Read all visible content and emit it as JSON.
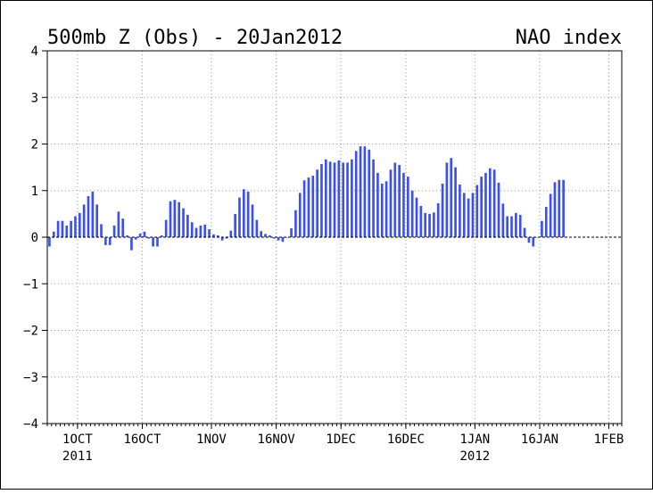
{
  "chart_data": {
    "type": "bar",
    "title": "500mb Z (Obs) - 20Jan2012",
    "subtitle": "NAO index",
    "xlabel": "",
    "ylabel": "",
    "ylim": [
      -4,
      4
    ],
    "yticks": [
      {
        "v": 4,
        "label": "4"
      },
      {
        "v": 3,
        "label": "3"
      },
      {
        "v": 2,
        "label": "2"
      },
      {
        "v": 1,
        "label": "1"
      },
      {
        "v": 0,
        "label": "0"
      },
      {
        "v": -1,
        "label": "−1"
      },
      {
        "v": -2,
        "label": "−2"
      },
      {
        "v": -3,
        "label": "−3"
      },
      {
        "v": -4,
        "label": "−4"
      }
    ],
    "x_start": "2011-09-24",
    "x_end": "2012-02-04",
    "xticks": [
      {
        "date": "2011-10-01",
        "label": "1OCT",
        "sublabel": "2011"
      },
      {
        "date": "2011-10-16",
        "label": "16OCT",
        "sublabel": ""
      },
      {
        "date": "2011-11-01",
        "label": "1NOV",
        "sublabel": ""
      },
      {
        "date": "2011-11-16",
        "label": "16NOV",
        "sublabel": ""
      },
      {
        "date": "2011-12-01",
        "label": "1DEC",
        "sublabel": ""
      },
      {
        "date": "2011-12-16",
        "label": "16DEC",
        "sublabel": ""
      },
      {
        "date": "2012-01-01",
        "label": "1JAN",
        "sublabel": "2012"
      },
      {
        "date": "2012-01-16",
        "label": "16JAN",
        "sublabel": ""
      },
      {
        "date": "2012-02-01",
        "label": "1FEB",
        "sublabel": ""
      }
    ],
    "grid": true,
    "bar_color": "#3c50f0",
    "series": [
      {
        "values": [
          {
            "x": "2011-09-24",
            "y": -0.2
          },
          {
            "x": "2011-09-25",
            "y": 0.12
          },
          {
            "x": "2011-09-26",
            "y": 0.35
          },
          {
            "x": "2011-09-27",
            "y": 0.35
          },
          {
            "x": "2011-09-28",
            "y": 0.25
          },
          {
            "x": "2011-09-29",
            "y": 0.35
          },
          {
            "x": "2011-09-30",
            "y": 0.45
          },
          {
            "x": "2011-10-01",
            "y": 0.52
          },
          {
            "x": "2011-10-02",
            "y": 0.7
          },
          {
            "x": "2011-10-03",
            "y": 0.88
          },
          {
            "x": "2011-10-04",
            "y": 0.98
          },
          {
            "x": "2011-10-05",
            "y": 0.7
          },
          {
            "x": "2011-10-06",
            "y": 0.28
          },
          {
            "x": "2011-10-07",
            "y": -0.17
          },
          {
            "x": "2011-10-08",
            "y": -0.17
          },
          {
            "x": "2011-10-09",
            "y": 0.25
          },
          {
            "x": "2011-10-10",
            "y": 0.55
          },
          {
            "x": "2011-10-11",
            "y": 0.4
          },
          {
            "x": "2011-10-12",
            "y": 0.04
          },
          {
            "x": "2011-10-13",
            "y": -0.28
          },
          {
            "x": "2011-10-14",
            "y": -0.05
          },
          {
            "x": "2011-10-15",
            "y": 0.08
          },
          {
            "x": "2011-10-16",
            "y": 0.12
          },
          {
            "x": "2011-10-17",
            "y": -0.03
          },
          {
            "x": "2011-10-18",
            "y": -0.2
          },
          {
            "x": "2011-10-19",
            "y": -0.2
          },
          {
            "x": "2011-10-20",
            "y": 0.04
          },
          {
            "x": "2011-10-21",
            "y": 0.37
          },
          {
            "x": "2011-10-22",
            "y": 0.77
          },
          {
            "x": "2011-10-23",
            "y": 0.8
          },
          {
            "x": "2011-10-24",
            "y": 0.75
          },
          {
            "x": "2011-10-25",
            "y": 0.62
          },
          {
            "x": "2011-10-26",
            "y": 0.48
          },
          {
            "x": "2011-10-27",
            "y": 0.32
          },
          {
            "x": "2011-10-28",
            "y": 0.2
          },
          {
            "x": "2011-10-29",
            "y": 0.25
          },
          {
            "x": "2011-10-30",
            "y": 0.27
          },
          {
            "x": "2011-10-31",
            "y": 0.17
          },
          {
            "x": "2011-11-01",
            "y": 0.06
          },
          {
            "x": "2011-11-02",
            "y": 0.04
          },
          {
            "x": "2011-11-03",
            "y": -0.07
          },
          {
            "x": "2011-11-04",
            "y": -0.03
          },
          {
            "x": "2011-11-05",
            "y": 0.14
          },
          {
            "x": "2011-11-06",
            "y": 0.5
          },
          {
            "x": "2011-11-07",
            "y": 0.85
          },
          {
            "x": "2011-11-08",
            "y": 1.03
          },
          {
            "x": "2011-11-09",
            "y": 0.98
          },
          {
            "x": "2011-11-10",
            "y": 0.7
          },
          {
            "x": "2011-11-11",
            "y": 0.37
          },
          {
            "x": "2011-11-12",
            "y": 0.13
          },
          {
            "x": "2011-11-13",
            "y": 0.07
          },
          {
            "x": "2011-11-14",
            "y": 0.04
          },
          {
            "x": "2011-11-15",
            "y": -0.03
          },
          {
            "x": "2011-11-16",
            "y": -0.07
          },
          {
            "x": "2011-11-17",
            "y": -0.1
          },
          {
            "x": "2011-11-18",
            "y": 0.0
          },
          {
            "x": "2011-11-19",
            "y": 0.19
          },
          {
            "x": "2011-11-20",
            "y": 0.58
          },
          {
            "x": "2011-11-21",
            "y": 0.95
          },
          {
            "x": "2011-11-22",
            "y": 1.22
          },
          {
            "x": "2011-11-23",
            "y": 1.28
          },
          {
            "x": "2011-11-24",
            "y": 1.32
          },
          {
            "x": "2011-11-25",
            "y": 1.45
          },
          {
            "x": "2011-11-26",
            "y": 1.57
          },
          {
            "x": "2011-11-27",
            "y": 1.67
          },
          {
            "x": "2011-11-28",
            "y": 1.62
          },
          {
            "x": "2011-11-29",
            "y": 1.6
          },
          {
            "x": "2011-11-30",
            "y": 1.65
          },
          {
            "x": "2011-12-01",
            "y": 1.6
          },
          {
            "x": "2011-12-02",
            "y": 1.6
          },
          {
            "x": "2011-12-03",
            "y": 1.67
          },
          {
            "x": "2011-12-04",
            "y": 1.85
          },
          {
            "x": "2011-12-05",
            "y": 1.95
          },
          {
            "x": "2011-12-06",
            "y": 1.95
          },
          {
            "x": "2011-12-07",
            "y": 1.88
          },
          {
            "x": "2011-12-08",
            "y": 1.67
          },
          {
            "x": "2011-12-09",
            "y": 1.38
          },
          {
            "x": "2011-12-10",
            "y": 1.15
          },
          {
            "x": "2011-12-11",
            "y": 1.2
          },
          {
            "x": "2011-12-12",
            "y": 1.45
          },
          {
            "x": "2011-12-13",
            "y": 1.6
          },
          {
            "x": "2011-12-14",
            "y": 1.55
          },
          {
            "x": "2011-12-15",
            "y": 1.38
          },
          {
            "x": "2011-12-16",
            "y": 1.3
          },
          {
            "x": "2011-12-17",
            "y": 1.0
          },
          {
            "x": "2011-12-18",
            "y": 0.85
          },
          {
            "x": "2011-12-19",
            "y": 0.67
          },
          {
            "x": "2011-12-20",
            "y": 0.52
          },
          {
            "x": "2011-12-21",
            "y": 0.5
          },
          {
            "x": "2011-12-22",
            "y": 0.53
          },
          {
            "x": "2011-12-23",
            "y": 0.73
          },
          {
            "x": "2011-12-24",
            "y": 1.15
          },
          {
            "x": "2011-12-25",
            "y": 1.6
          },
          {
            "x": "2011-12-26",
            "y": 1.7
          },
          {
            "x": "2011-12-27",
            "y": 1.5
          },
          {
            "x": "2011-12-28",
            "y": 1.13
          },
          {
            "x": "2011-12-29",
            "y": 0.95
          },
          {
            "x": "2011-12-30",
            "y": 0.83
          },
          {
            "x": "2011-12-31",
            "y": 0.95
          },
          {
            "x": "2012-01-01",
            "y": 1.12
          },
          {
            "x": "2012-01-02",
            "y": 1.3
          },
          {
            "x": "2012-01-03",
            "y": 1.38
          },
          {
            "x": "2012-01-04",
            "y": 1.48
          },
          {
            "x": "2012-01-05",
            "y": 1.45
          },
          {
            "x": "2012-01-06",
            "y": 1.17
          },
          {
            "x": "2012-01-07",
            "y": 0.72
          },
          {
            "x": "2012-01-08",
            "y": 0.45
          },
          {
            "x": "2012-01-09",
            "y": 0.45
          },
          {
            "x": "2012-01-10",
            "y": 0.52
          },
          {
            "x": "2012-01-11",
            "y": 0.48
          },
          {
            "x": "2012-01-12",
            "y": 0.2
          },
          {
            "x": "2012-01-13",
            "y": -0.12
          },
          {
            "x": "2012-01-14",
            "y": -0.2
          },
          {
            "x": "2012-01-15",
            "y": 0.0
          },
          {
            "x": "2012-01-16",
            "y": 0.35
          },
          {
            "x": "2012-01-17",
            "y": 0.65
          },
          {
            "x": "2012-01-18",
            "y": 0.93
          },
          {
            "x": "2012-01-19",
            "y": 1.18
          },
          {
            "x": "2012-01-20",
            "y": 1.23
          },
          {
            "x": "2012-01-21",
            "y": 1.23
          }
        ]
      }
    ]
  }
}
